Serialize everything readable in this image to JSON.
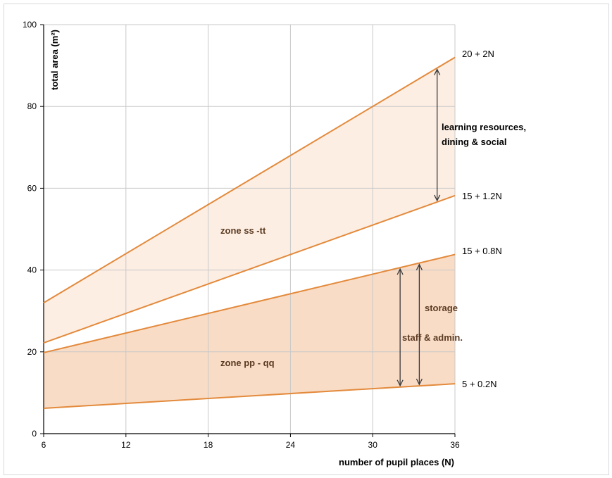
{
  "chart_data": {
    "type": "line",
    "xlabel": "number of pupil places (N)",
    "ylabel": "total area (m²)",
    "xlim": [
      6,
      36
    ],
    "ylim": [
      0,
      100
    ],
    "x_ticks": [
      6,
      12,
      18,
      24,
      30,
      36
    ],
    "y_ticks": [
      0,
      20,
      40,
      60,
      80,
      100
    ],
    "grid": true,
    "series": [
      {
        "name": "20 + 2N",
        "x": [
          6,
          36
        ],
        "y": [
          32,
          92
        ],
        "color": "#e38a3c"
      },
      {
        "name": "15 + 1.2N",
        "x": [
          6,
          36
        ],
        "y": [
          22.2,
          58.2
        ],
        "color": "#e38a3c"
      },
      {
        "name": "15 + 0.8N",
        "x": [
          6,
          36
        ],
        "y": [
          19.8,
          43.8
        ],
        "color": "#e38a3c"
      },
      {
        "name": "5 + 0.2N",
        "x": [
          6,
          36
        ],
        "y": [
          6.2,
          12.2
        ],
        "color": "#e38a3c"
      }
    ],
    "bands": [
      {
        "label": "zone ss -tt",
        "upper": "20 + 2N",
        "lower": "15 + 1.2N",
        "color": "#fdeee3"
      },
      {
        "label": "zone pp - qq",
        "upper": "15 + 0.8N",
        "lower": "5 + 0.2N",
        "color": "#f9dcc6"
      }
    ],
    "annotations": [
      {
        "text_lines": [
          "learning resources,",
          "dining & social"
        ]
      },
      {
        "text_lines": [
          "storage"
        ]
      },
      {
        "text_lines": [
          "staff & admin."
        ]
      }
    ]
  }
}
